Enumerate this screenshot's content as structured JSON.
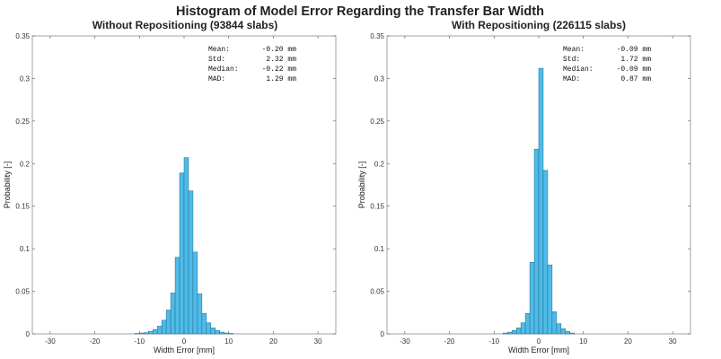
{
  "figure_title": "Histogram of Model Error Regarding the Transfer Bar Width",
  "chart_data": [
    {
      "type": "bar",
      "title": "Without Repositioning (93844 slabs)",
      "xlabel": "Width Error [mm]",
      "ylabel": "Probability [-]",
      "xlim": [
        -34,
        34
      ],
      "ylim": [
        0,
        0.35
      ],
      "xticks": [
        -30,
        -20,
        -10,
        0,
        10,
        20,
        30
      ],
      "yticks": [
        0,
        0.05,
        0.1,
        0.15,
        0.2,
        0.25,
        0.3,
        0.35
      ],
      "bin_width": 1,
      "bin_start": [
        -11,
        -10,
        -9,
        -8,
        -7,
        -6,
        -5,
        -4,
        -3,
        -2,
        -1,
        0,
        1,
        2,
        3,
        4,
        5,
        6,
        7,
        8,
        9,
        10
      ],
      "values": [
        0.0005,
        0.001,
        0.0015,
        0.003,
        0.005,
        0.009,
        0.016,
        0.028,
        0.048,
        0.09,
        0.189,
        0.207,
        0.168,
        0.096,
        0.047,
        0.024,
        0.013,
        0.007,
        0.004,
        0.002,
        0.001,
        0.0005
      ],
      "stats": [
        {
          "label": "Mean:",
          "value": "-0.20 mm"
        },
        {
          "label": "Std:",
          "value": "2.32 mm"
        },
        {
          "label": "Median:",
          "value": "-0.22 mm"
        },
        {
          "label": "MAD:",
          "value": "1.29 mm"
        }
      ]
    },
    {
      "type": "bar",
      "title": "With Repositioning (226115 slabs)",
      "xlabel": "Width Error [mm]",
      "ylabel": "Probability [-]",
      "xlim": [
        -34,
        34
      ],
      "ylim": [
        0,
        0.35
      ],
      "xticks": [
        -30,
        -20,
        -10,
        0,
        10,
        20,
        30
      ],
      "yticks": [
        0,
        0.05,
        0.1,
        0.15,
        0.2,
        0.25,
        0.3,
        0.35
      ],
      "bin_width": 1,
      "bin_start": [
        -8,
        -7,
        -6,
        -5,
        -4,
        -3,
        -2,
        -1,
        0,
        1,
        2,
        3,
        4,
        5,
        6,
        7
      ],
      "values": [
        0.001,
        0.002,
        0.004,
        0.007,
        0.013,
        0.024,
        0.084,
        0.217,
        0.312,
        0.192,
        0.081,
        0.026,
        0.012,
        0.006,
        0.003,
        0.001
      ],
      "stats": [
        {
          "label": "Mean:",
          "value": "-0.09 mm"
        },
        {
          "label": "Std:",
          "value": "1.72 mm"
        },
        {
          "label": "Median:",
          "value": "-0.09 mm"
        },
        {
          "label": "MAD:",
          "value": "0.87 mm"
        }
      ]
    }
  ]
}
